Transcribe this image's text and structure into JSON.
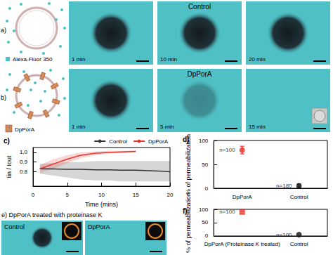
{
  "images": {
    "a": {
      "label": "a)",
      "dye": "Alexa-Fluor 350",
      "title": "Control",
      "times": [
        "1 min",
        "10 min",
        "20 min"
      ]
    },
    "b": {
      "label": "b)",
      "pore": "DpPorA",
      "title": "DpPorA",
      "times": [
        "1 min",
        "5 min",
        "15 min"
      ]
    },
    "e": {
      "title": "e) DpPorA treated with proteinase K",
      "panels": [
        "Control",
        "DpPorA"
      ]
    }
  },
  "chart_data": [
    {
      "type": "line",
      "title": "c)",
      "x_label": "Time (mins)",
      "y_label": "Iin / Iout",
      "xlim": [
        0,
        20
      ],
      "xticks": [
        0,
        5,
        10,
        15,
        20
      ],
      "ylim": [
        0.65,
        1.05
      ],
      "yticks": [
        0.8,
        0.9,
        {
          "value": 1,
          "label": "1.0"
        }
      ],
      "grid": false,
      "legend": "upper right",
      "series": [
        {
          "name": "Control",
          "color": "#333333",
          "x": [
            1,
            3,
            5,
            7,
            9,
            11,
            13,
            15,
            17,
            19,
            20
          ],
          "values": [
            0.83,
            0.828,
            0.825,
            0.825,
            0.82,
            0.82,
            0.815,
            0.815,
            0.81,
            0.805,
            0.8
          ],
          "lower": [
            0.78,
            0.76,
            0.74,
            0.72,
            0.71,
            0.71,
            0.7,
            0.7,
            0.7,
            0.7,
            0.7
          ],
          "upper": [
            0.88,
            0.89,
            0.9,
            0.9,
            0.91,
            0.91,
            0.91,
            0.91,
            0.91,
            0.91,
            0.91
          ]
        },
        {
          "name": "DpPorA",
          "color": "#e8312a",
          "x": [
            1,
            3,
            5,
            7,
            9,
            11,
            13,
            15
          ],
          "values": [
            0.83,
            0.88,
            0.93,
            0.97,
            0.99,
            1.0,
            1.005,
            1.01
          ],
          "lower": [
            0.79,
            0.83,
            0.89,
            0.94,
            0.97,
            0.985,
            0.995,
            1.0
          ],
          "upper": [
            0.87,
            0.93,
            0.97,
            1.0,
            1.01,
            1.015,
            1.015,
            1.02
          ]
        }
      ]
    },
    {
      "type": "scatter",
      "title": "d)",
      "y_label": "% of permeabilization",
      "categories": [
        "DpPorA",
        "Control"
      ],
      "values": [
        80,
        5
      ],
      "errors": [
        8,
        4
      ],
      "colors": [
        "#e8312a",
        "#111111"
      ],
      "marker": "circle",
      "annotations": [
        "n=100",
        "n=180"
      ],
      "ylim": [
        0,
        100
      ],
      "yticks": [
        0,
        50,
        100
      ],
      "grid": false
    },
    {
      "type": "scatter",
      "title": "f)",
      "y_label": "% of permeabilization",
      "categories": [
        "DpPorA (Proteinase K treated)",
        "Control"
      ],
      "series": [
        {
          "values": [
            90,
            null
          ],
          "color": "#e8312a",
          "marker": "square"
        },
        {
          "values": [
            null,
            5
          ],
          "color": "#111111",
          "marker": "circle"
        }
      ],
      "annotations": [
        "n=100",
        "n=100"
      ],
      "ylim": [
        0,
        100
      ],
      "yticks": [
        0,
        50,
        100
      ],
      "grid": false
    }
  ]
}
